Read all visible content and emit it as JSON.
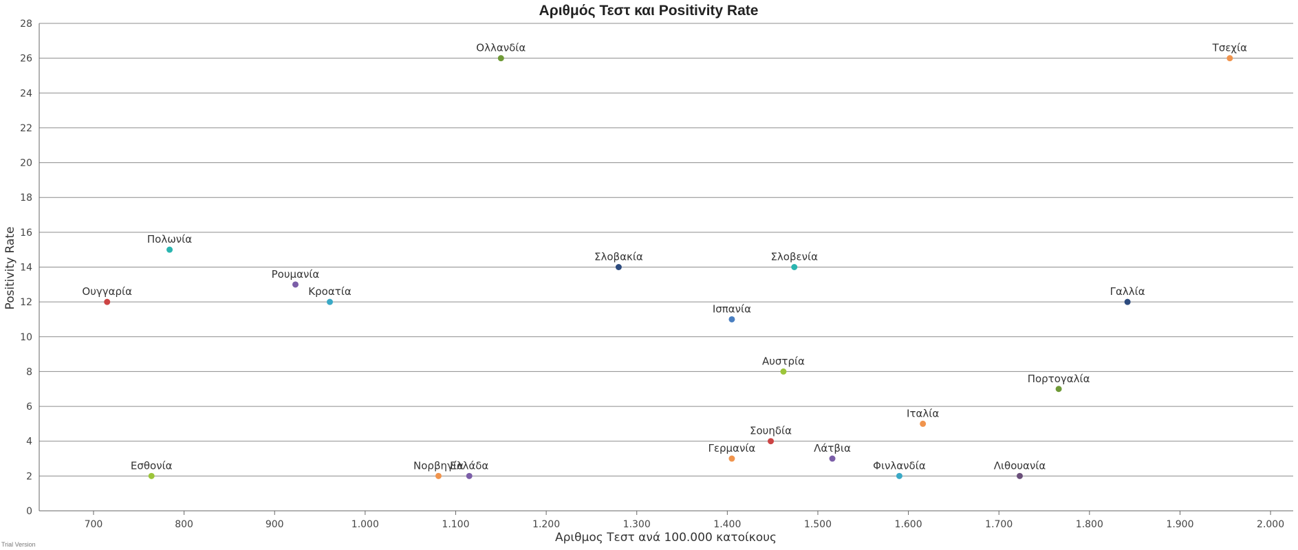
{
  "chart_data": {
    "type": "scatter",
    "title": "Αριθμός Τεστ και Positivity Rate",
    "xlabel": "Αριθμος Τεστ ανά 100.000 κατοίκους",
    "ylabel": "Positivity Rate",
    "xlim": [
      640,
      2025
    ],
    "ylim": [
      0,
      28
    ],
    "grid": true,
    "x_ticks": [
      700,
      800,
      900,
      1000,
      1100,
      1200,
      1300,
      1400,
      1500,
      1600,
      1700,
      1800,
      1900,
      2000
    ],
    "x_tick_labels": [
      "700",
      "800",
      "900",
      "1.000",
      "1.100",
      "1.200",
      "1.300",
      "1.400",
      "1.500",
      "1.600",
      "1.700",
      "1.800",
      "1.900",
      "2.000"
    ],
    "y_ticks": [
      0,
      2,
      4,
      6,
      8,
      10,
      12,
      14,
      16,
      18,
      20,
      22,
      24,
      26,
      28
    ],
    "points": [
      {
        "name": "Ολλανδία",
        "x": 1150,
        "y": 26,
        "color": "#6f9a37"
      },
      {
        "name": "Τσεχία",
        "x": 1955,
        "y": 26,
        "color": "#f0944d"
      },
      {
        "name": "Πολωνία",
        "x": 784,
        "y": 15,
        "color": "#2ab5b0"
      },
      {
        "name": "Σλοβακία",
        "x": 1280,
        "y": 14,
        "color": "#2d4b7e"
      },
      {
        "name": "Σλοβενία",
        "x": 1474,
        "y": 14,
        "color": "#2ab5b0"
      },
      {
        "name": "Ρουμανία",
        "x": 923,
        "y": 13,
        "color": "#7b5ea8"
      },
      {
        "name": "Ουγγαρία",
        "x": 715,
        "y": 12,
        "color": "#cc4444"
      },
      {
        "name": "Κροατία",
        "x": 961,
        "y": 12,
        "color": "#3aa9c6"
      },
      {
        "name": "Γαλλία",
        "x": 1842,
        "y": 12,
        "color": "#2d4b7e"
      },
      {
        "name": "Ισπανία",
        "x": 1405,
        "y": 11,
        "color": "#4a7fc1"
      },
      {
        "name": "Αυστρία",
        "x": 1462,
        "y": 8,
        "color": "#9cc53a"
      },
      {
        "name": "Πορτογαλία",
        "x": 1766,
        "y": 7,
        "color": "#6f9a37"
      },
      {
        "name": "Ιταλία",
        "x": 1616,
        "y": 5,
        "color": "#f0944d"
      },
      {
        "name": "Σουηδία",
        "x": 1448,
        "y": 4,
        "color": "#cc4444"
      },
      {
        "name": "Γερμανία",
        "x": 1405,
        "y": 3,
        "color": "#f0944d"
      },
      {
        "name": "Λάτβια",
        "x": 1516,
        "y": 3,
        "color": "#7b5ea8"
      },
      {
        "name": "Εσθονία",
        "x": 764,
        "y": 2,
        "color": "#9cc53a"
      },
      {
        "name": "Νορβηγία",
        "x": 1081,
        "y": 2,
        "color": "#f0944d"
      },
      {
        "name": "Ελλάδα",
        "x": 1115,
        "y": 2,
        "color": "#7b5ea8"
      },
      {
        "name": "Φινλανδία",
        "x": 1590,
        "y": 2,
        "color": "#3aa9c6"
      },
      {
        "name": "Λιθουανία",
        "x": 1723,
        "y": 2,
        "color": "#6a4f7a"
      }
    ]
  },
  "watermark": "Trial Version"
}
